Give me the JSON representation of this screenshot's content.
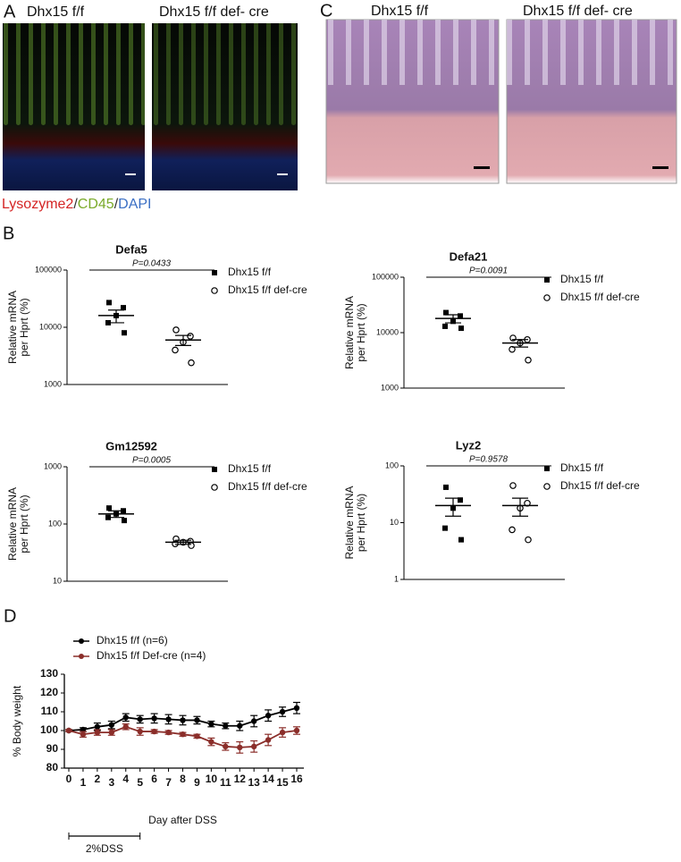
{
  "panels": {
    "a": {
      "label": "A",
      "titles": [
        "Dhx15 f/f",
        "Dhx15 f/f def- cre"
      ],
      "caption": [
        "Lysozyme2",
        "/",
        "CD45",
        "/",
        "DAPI"
      ],
      "caption_colors": [
        "#d42424",
        "#333333",
        "#7aaa2a",
        "#333333",
        "#3b6fc4"
      ]
    },
    "b": {
      "label": "B"
    },
    "c": {
      "label": "C",
      "titles": [
        "Dhx15 f/f",
        "Dhx15 f/f def- cre"
      ]
    },
    "d": {
      "label": "D"
    }
  },
  "chart_data": [
    {
      "type": "dotplot",
      "title": "Defa5",
      "ylabel": [
        "Relative mRNA",
        "per Hprt (%)"
      ],
      "log": true,
      "ylim": [
        1000,
        100000
      ],
      "yticks": [
        1000,
        10000,
        100000
      ],
      "annotation": "P=0.0433",
      "series": [
        {
          "name": "Dhx15 f/f",
          "marker": "square",
          "color": "#000000",
          "values": [
            27000,
            22000,
            16000,
            12000,
            8000
          ],
          "mean": 16000,
          "sem": 4000
        },
        {
          "name": "Dhx15 f/f def-cre",
          "marker": "circle",
          "color": "#000000",
          "values": [
            9000,
            7000,
            5500,
            4000,
            2400
          ],
          "mean": 6000,
          "sem": 1200
        }
      ]
    },
    {
      "type": "dotplot",
      "title": "Defa21",
      "ylabel": [
        "Relative mRNA",
        "per Hprt (%)"
      ],
      "log": true,
      "ylim": [
        1000,
        100000
      ],
      "yticks": [
        1000,
        10000,
        100000
      ],
      "annotation": "P=0.0091",
      "series": [
        {
          "name": "Dhx15 f/f",
          "marker": "square",
          "color": "#000000",
          "values": [
            23000,
            20000,
            16000,
            13000,
            12000
          ],
          "mean": 18000,
          "sem": 3000
        },
        {
          "name": "Dhx15 f/f def-cre",
          "marker": "circle",
          "color": "#000000",
          "values": [
            8000,
            7500,
            6500,
            5000,
            3200
          ],
          "mean": 6500,
          "sem": 1000
        }
      ]
    },
    {
      "type": "dotplot",
      "title": "Gm12592",
      "ylabel": [
        "Relative mRNA",
        "per Hprt (%)"
      ],
      "log": true,
      "ylim": [
        10,
        1000
      ],
      "yticks": [
        10,
        100,
        1000
      ],
      "annotation": "P=0.0005",
      "series": [
        {
          "name": "Dhx15 f/f",
          "marker": "square",
          "color": "#000000",
          "values": [
            190,
            170,
            150,
            130,
            115
          ],
          "mean": 150,
          "sem": 20
        },
        {
          "name": "Dhx15 f/f def-cre",
          "marker": "circle",
          "color": "#000000",
          "values": [
            55,
            50,
            48,
            45,
            42
          ],
          "mean": 48,
          "sem": 4
        }
      ]
    },
    {
      "type": "dotplot",
      "title": "Lyz2",
      "ylabel": [
        "Relative mRNA",
        "per Hprt (%)"
      ],
      "log": true,
      "ylim": [
        1,
        100
      ],
      "yticks": [
        1,
        10,
        100
      ],
      "annotation": "P=0.9578",
      "series": [
        {
          "name": "Dhx15 f/f",
          "marker": "square",
          "color": "#000000",
          "values": [
            42,
            25,
            18,
            8,
            5
          ],
          "mean": 20,
          "sem": 7
        },
        {
          "name": "Dhx15 f/f def-cre",
          "marker": "circle",
          "color": "#000000",
          "values": [
            45,
            22,
            18,
            7.5,
            5
          ],
          "mean": 20,
          "sem": 7
        }
      ]
    },
    {
      "type": "line",
      "xlabel": "Day after DSS",
      "ylabel": "% Body weight",
      "x": [
        0,
        1,
        2,
        3,
        4,
        5,
        6,
        7,
        8,
        9,
        10,
        11,
        12,
        13,
        14,
        15,
        16
      ],
      "xlim": [
        0,
        16
      ],
      "xticks": [
        0,
        1,
        2,
        3,
        4,
        5,
        6,
        7,
        8,
        9,
        10,
        11,
        12,
        13,
        14,
        15,
        16
      ],
      "ylim": [
        80,
        130
      ],
      "yticks": [
        80,
        90,
        100,
        110,
        120,
        130
      ],
      "period": {
        "text": "2%DSS",
        "x": [
          0,
          5
        ]
      },
      "series": [
        {
          "name": "Dhx15 f/f (n=6)",
          "color": "#000000",
          "values": [
            100,
            100.5,
            102,
            103,
            107,
            106,
            106.5,
            106,
            105.5,
            105.5,
            103.5,
            102.5,
            102.5,
            105,
            108,
            110,
            112
          ],
          "errors": [
            0.5,
            1,
            2,
            2,
            2,
            2,
            2.5,
            2.5,
            2.5,
            2,
            1.5,
            1.5,
            2.5,
            3,
            3,
            2.5,
            3
          ]
        },
        {
          "name": "Dhx15 f/f Def-cre (n=4)",
          "color": "#8b2e2a",
          "values": [
            100,
            98,
            99,
            99,
            102,
            99.5,
            99.5,
            99,
            98,
            97,
            94,
            91.5,
            91,
            91.5,
            95,
            99,
            100
          ],
          "errors": [
            0.5,
            1.5,
            1.5,
            1.5,
            1.5,
            2,
            1,
            1,
            1,
            1,
            2,
            2,
            3,
            3,
            3,
            2.5,
            2
          ]
        }
      ]
    }
  ]
}
